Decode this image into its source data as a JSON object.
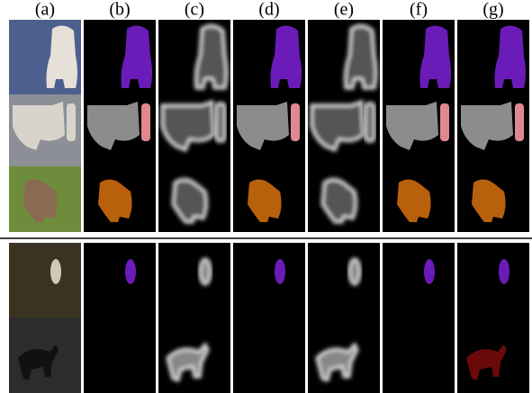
{
  "labels": [
    "(a)",
    "(b)",
    "(c)",
    "(d)",
    "(e)",
    "(f)",
    "(g)"
  ]
}
